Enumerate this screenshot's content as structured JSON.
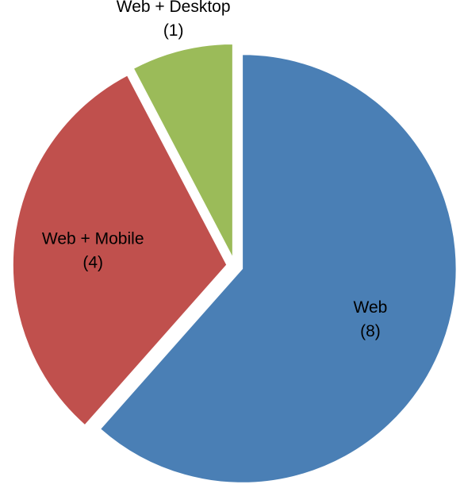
{
  "chart_data": {
    "type": "pie",
    "title": "",
    "slices": [
      {
        "label": "Web",
        "count_label": "(8)",
        "value": 8,
        "color": "#4a7fb5"
      },
      {
        "label": "Web + Mobile",
        "count_label": "(4)",
        "value": 4,
        "color": "#c0504d"
      },
      {
        "label": "Web + Desktop",
        "count_label": "(1)",
        "value": 1,
        "color": "#9bbb59"
      }
    ],
    "exploded": true,
    "legend": "none",
    "start_angle": "12 o'clock",
    "direction": "clockwise"
  }
}
